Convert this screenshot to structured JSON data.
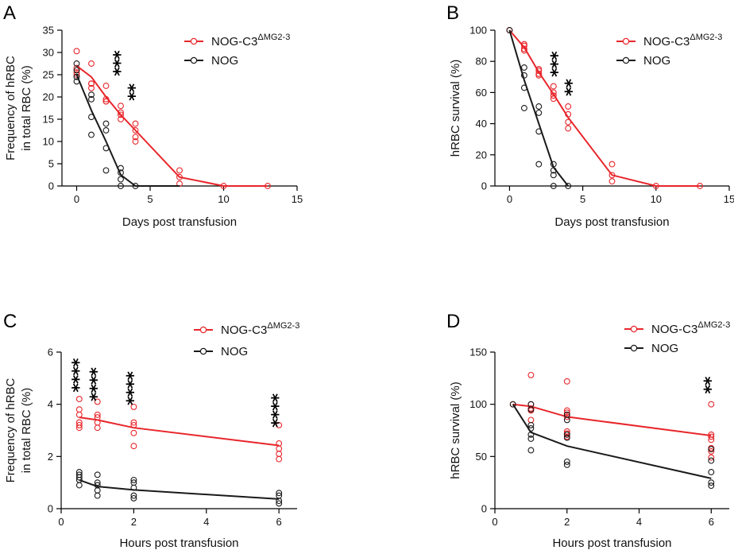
{
  "colors": {
    "red": "#e8262b",
    "black": "#1a1a1a"
  },
  "chart_data": [
    {
      "id": "A",
      "panel_label": "A",
      "type": "scatter",
      "xlabel": "Days post transfusion",
      "ylabel_lines": [
        "Frequency of hRBC",
        "in total RBC (%)"
      ],
      "xlim": [
        -1,
        15
      ],
      "ylim": [
        0,
        35
      ],
      "xticks": [
        "0",
        "5",
        "10",
        "15"
      ],
      "xtick_values": [
        0,
        5,
        10,
        15
      ],
      "yticks": [
        "0",
        "5",
        "10",
        "15",
        "20",
        "25",
        "30",
        "35"
      ],
      "ytick_values": [
        0,
        5,
        10,
        15,
        20,
        25,
        30,
        35
      ],
      "legend_placement": "top-right",
      "series": [
        {
          "name": "NOG-C3",
          "name_sup": "ΔMG2-3",
          "color": "red",
          "line_x": [
            0,
            1,
            2,
            3,
            4,
            7,
            10,
            13
          ],
          "line_y": [
            27,
            24.5,
            20,
            16,
            12.5,
            2,
            0,
            0
          ],
          "points": [
            [
              0,
              30.3
            ],
            [
              0,
              26.5
            ],
            [
              0,
              25.5
            ],
            [
              0,
              25
            ],
            [
              1,
              27.5
            ],
            [
              1,
              23
            ],
            [
              1,
              23
            ],
            [
              1,
              22
            ],
            [
              2,
              22.5
            ],
            [
              2,
              19.5
            ],
            [
              2,
              19
            ],
            [
              2,
              19
            ],
            [
              3,
              18
            ],
            [
              3,
              16.5
            ],
            [
              3,
              16
            ],
            [
              3,
              15
            ],
            [
              4,
              14
            ],
            [
              4,
              12.5
            ],
            [
              4,
              11
            ],
            [
              4,
              10
            ],
            [
              7,
              3.5
            ],
            [
              7,
              2
            ],
            [
              7,
              0.5
            ],
            [
              10,
              0
            ],
            [
              13,
              0
            ]
          ]
        },
        {
          "name": "NOG",
          "color": "black",
          "line_x": [
            0,
            1,
            2,
            3,
            4,
            7
          ],
          "line_y": [
            25,
            17,
            10,
            2.5,
            0,
            0
          ],
          "points": [
            [
              0,
              27.5
            ],
            [
              0,
              26
            ],
            [
              0,
              24.5
            ],
            [
              0,
              23.5
            ],
            [
              1,
              20.5
            ],
            [
              1,
              19.5
            ],
            [
              1,
              15.5
            ],
            [
              1,
              11.5
            ],
            [
              2,
              14
            ],
            [
              2,
              12.5
            ],
            [
              2,
              8.5
            ],
            [
              2,
              3.5
            ],
            [
              3,
              4
            ],
            [
              3,
              3
            ],
            [
              3,
              1.5
            ],
            [
              3,
              0
            ],
            [
              4,
              0
            ]
          ]
        }
      ],
      "annotations": [
        {
          "text": "***",
          "x": 3,
          "y": 27.5
        },
        {
          "text": "**",
          "x": 4,
          "y": 21
        }
      ]
    },
    {
      "id": "B",
      "panel_label": "B",
      "type": "scatter",
      "xlabel": "Days post transfusion",
      "ylabel_lines": [
        "hRBC survival (%)"
      ],
      "xlim": [
        -1,
        15
      ],
      "ylim": [
        0,
        100
      ],
      "xticks": [
        "0",
        "5",
        "10",
        "15"
      ],
      "xtick_values": [
        0,
        5,
        10,
        15
      ],
      "yticks": [
        "0",
        "20",
        "40",
        "60",
        "80",
        "100"
      ],
      "ytick_values": [
        0,
        20,
        40,
        60,
        80,
        100
      ],
      "legend_placement": "top-right",
      "series": [
        {
          "name": "NOG-C3",
          "name_sup": "ΔMG2-3",
          "color": "red",
          "line_x": [
            0,
            1,
            2,
            3,
            4,
            7,
            10,
            13
          ],
          "line_y": [
            100,
            89,
            73,
            59,
            44,
            7,
            0,
            0
          ],
          "points": [
            [
              0,
              100
            ],
            [
              1,
              91
            ],
            [
              1,
              90
            ],
            [
              1,
              88
            ],
            [
              1,
              87
            ],
            [
              2,
              75
            ],
            [
              2,
              74
            ],
            [
              2,
              72
            ],
            [
              2,
              71
            ],
            [
              3,
              64
            ],
            [
              3,
              60
            ],
            [
              3,
              58
            ],
            [
              3,
              56
            ],
            [
              4,
              51
            ],
            [
              4,
              46
            ],
            [
              4,
              41
            ],
            [
              4,
              37
            ],
            [
              7,
              14
            ],
            [
              7,
              7
            ],
            [
              7,
              3
            ],
            [
              10,
              0
            ],
            [
              13,
              0
            ]
          ]
        },
        {
          "name": "NOG",
          "color": "black",
          "line_x": [
            0,
            1,
            2,
            3,
            4
          ],
          "line_y": [
            100,
            68,
            40,
            12,
            0
          ],
          "points": [
            [
              0,
              100
            ],
            [
              1,
              76
            ],
            [
              1,
              71
            ],
            [
              1,
              63
            ],
            [
              1,
              50
            ],
            [
              2,
              51
            ],
            [
              2,
              47
            ],
            [
              2,
              35
            ],
            [
              2,
              14
            ],
            [
              3,
              14
            ],
            [
              3,
              10
            ],
            [
              3,
              7
            ],
            [
              3,
              0
            ],
            [
              4,
              0
            ]
          ]
        }
      ],
      "annotations": [
        {
          "text": "***",
          "x": 3.3,
          "y": 78
        },
        {
          "text": "**",
          "x": 4.3,
          "y": 63
        }
      ]
    },
    {
      "id": "C",
      "panel_label": "C",
      "type": "scatter",
      "xlabel": "Hours post transfusion",
      "ylabel_lines": [
        "Frequency of hRBC",
        "in total RBC (%)"
      ],
      "xlim": [
        0,
        6.5
      ],
      "ylim": [
        0,
        6
      ],
      "xticks": [
        "0",
        "2",
        "4",
        "6"
      ],
      "xtick_values": [
        0,
        2,
        4,
        6
      ],
      "yticks": [
        "0",
        "2",
        "4",
        "6"
      ],
      "ytick_values": [
        0,
        2,
        4,
        6
      ],
      "legend_placement": "top-right",
      "series": [
        {
          "name": "NOG-C3",
          "name_sup": "ΔMG2-3",
          "color": "red",
          "line_x": [
            0.5,
            1,
            2,
            6
          ],
          "line_y": [
            3.5,
            3.4,
            3.1,
            2.42
          ],
          "points": [
            [
              0.5,
              4.2
            ],
            [
              0.5,
              3.8
            ],
            [
              0.5,
              3.6
            ],
            [
              0.5,
              3.3
            ],
            [
              0.5,
              3.2
            ],
            [
              0.5,
              3.1
            ],
            [
              1,
              4.1
            ],
            [
              1,
              3.6
            ],
            [
              1,
              3.5
            ],
            [
              1,
              3.3
            ],
            [
              1,
              3.1
            ],
            [
              2,
              3.9
            ],
            [
              2,
              3.3
            ],
            [
              2,
              3.2
            ],
            [
              2,
              2.9
            ],
            [
              2,
              2.4
            ],
            [
              6,
              3.2
            ],
            [
              6,
              2.5
            ],
            [
              6,
              2.3
            ],
            [
              6,
              2.1
            ],
            [
              6,
              1.9
            ]
          ]
        },
        {
          "name": "NOG",
          "color": "black",
          "line_x": [
            0.5,
            1,
            2,
            6
          ],
          "line_y": [
            1.1,
            0.85,
            0.72,
            0.37
          ],
          "points": [
            [
              0.5,
              1.4
            ],
            [
              0.5,
              1.3
            ],
            [
              0.5,
              1.2
            ],
            [
              0.5,
              1.1
            ],
            [
              0.5,
              0.9
            ],
            [
              1,
              1.3
            ],
            [
              1,
              1.0
            ],
            [
              1,
              0.9
            ],
            [
              1,
              0.7
            ],
            [
              1,
              0.5
            ],
            [
              2,
              1.1
            ],
            [
              2,
              1.0
            ],
            [
              2,
              0.8
            ],
            [
              2,
              0.5
            ],
            [
              2,
              0.4
            ],
            [
              6,
              0.6
            ],
            [
              6,
              0.5
            ],
            [
              6,
              0.3
            ],
            [
              6,
              0.2
            ]
          ]
        }
      ],
      "annotations": [
        {
          "text": "****",
          "x": 0.5,
          "y": 5.1
        },
        {
          "text": "****",
          "x": 1,
          "y": 4.75
        },
        {
          "text": "****",
          "x": 2,
          "y": 4.6
        },
        {
          "text": "****",
          "x": 6,
          "y": 3.75
        }
      ]
    },
    {
      "id": "D",
      "panel_label": "D",
      "type": "scatter",
      "xlabel": "Hours post transfusion",
      "ylabel_lines": [
        "hRBC survival (%)"
      ],
      "xlim": [
        0,
        6.5
      ],
      "ylim": [
        0,
        150
      ],
      "xticks": [
        "0",
        "2",
        "4",
        "6"
      ],
      "xtick_values": [
        0,
        2,
        4,
        6
      ],
      "yticks": [
        "0",
        "50",
        "100",
        "150"
      ],
      "ytick_values": [
        0,
        50,
        100,
        150
      ],
      "legend_placement": "top-right",
      "series": [
        {
          "name": "NOG-C3",
          "name_sup": "ΔMG2-3",
          "color": "red",
          "line_x": [
            0.5,
            1,
            2,
            6
          ],
          "line_y": [
            100,
            98,
            88,
            70
          ],
          "points": [
            [
              0.5,
              100
            ],
            [
              1,
              128
            ],
            [
              1,
              100
            ],
            [
              1,
              96
            ],
            [
              1,
              94
            ],
            [
              1,
              85
            ],
            [
              2,
              122
            ],
            [
              2,
              94
            ],
            [
              2,
              92
            ],
            [
              2,
              88
            ],
            [
              2,
              74
            ],
            [
              2,
              72
            ],
            [
              2,
              69
            ],
            [
              6,
              100
            ],
            [
              6,
              71
            ],
            [
              6,
              69
            ],
            [
              6,
              66
            ],
            [
              6,
              58
            ],
            [
              6,
              55
            ],
            [
              6,
              49
            ]
          ]
        },
        {
          "name": "NOG",
          "color": "black",
          "line_x": [
            0.5,
            1,
            2,
            6
          ],
          "line_y": [
            100,
            73,
            60,
            29
          ],
          "points": [
            [
              0.5,
              100
            ],
            [
              1,
              100
            ],
            [
              1,
              95
            ],
            [
              1,
              80
            ],
            [
              1,
              77
            ],
            [
              1,
              71
            ],
            [
              1,
              67
            ],
            [
              1,
              56
            ],
            [
              2,
              90
            ],
            [
              2,
              85
            ],
            [
              2,
              71
            ],
            [
              2,
              68
            ],
            [
              2,
              45
            ],
            [
              2,
              42
            ],
            [
              6,
              57
            ],
            [
              6,
              46
            ],
            [
              6,
              35
            ],
            [
              6,
              25
            ],
            [
              6,
              22
            ]
          ]
        }
      ],
      "annotations": [
        {
          "text": "**",
          "x": 6,
          "y": 118
        }
      ]
    }
  ]
}
